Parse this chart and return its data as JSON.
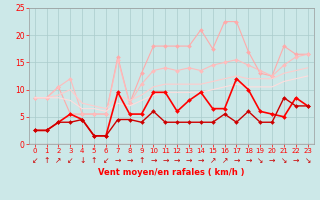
{
  "x": [
    0,
    1,
    2,
    3,
    4,
    5,
    6,
    7,
    8,
    9,
    10,
    11,
    12,
    13,
    14,
    15,
    16,
    17,
    18,
    19,
    20,
    21,
    22,
    23
  ],
  "series": [
    {
      "name": "rafales_high",
      "color": "#ffaaaa",
      "linewidth": 0.8,
      "markersize": 2.0,
      "marker": "D",
      "values": [
        8.5,
        8.5,
        10.5,
        5.5,
        5.5,
        5.5,
        5.5,
        16.0,
        7.5,
        13.0,
        18.0,
        18.0,
        18.0,
        18.0,
        21.0,
        17.5,
        22.5,
        22.5,
        17.0,
        13.0,
        12.5,
        18.0,
        16.5,
        16.5
      ]
    },
    {
      "name": "rafales_mid",
      "color": "#ffbbbb",
      "linewidth": 0.8,
      "markersize": 2.0,
      "marker": "D",
      "values": [
        8.5,
        8.5,
        10.5,
        12.0,
        5.5,
        5.5,
        5.5,
        15.5,
        7.5,
        11.0,
        13.5,
        14.0,
        13.5,
        14.0,
        13.5,
        14.5,
        15.0,
        15.5,
        14.5,
        13.5,
        12.5,
        14.5,
        16.0,
        16.5
      ]
    },
    {
      "name": "moy_upper",
      "color": "#ffcccc",
      "linewidth": 0.8,
      "markersize": 0,
      "marker": "None",
      "values": [
        8.5,
        8.5,
        9.0,
        10.0,
        7.5,
        7.0,
        6.5,
        9.0,
        8.0,
        9.0,
        10.5,
        11.0,
        11.0,
        11.0,
        11.0,
        11.5,
        12.0,
        12.5,
        12.0,
        12.0,
        12.0,
        13.0,
        13.5,
        14.0
      ]
    },
    {
      "name": "moy_lower",
      "color": "#ffdddd",
      "linewidth": 0.8,
      "markersize": 0,
      "marker": "None",
      "values": [
        8.5,
        8.5,
        8.5,
        8.0,
        6.5,
        6.5,
        6.0,
        7.5,
        7.0,
        8.0,
        9.0,
        9.5,
        9.5,
        9.5,
        9.5,
        10.0,
        10.5,
        11.0,
        10.5,
        10.5,
        10.5,
        11.5,
        12.0,
        12.5
      ]
    },
    {
      "name": "vent_moyen",
      "color": "#ff0000",
      "linewidth": 1.2,
      "markersize": 2.0,
      "marker": "D",
      "values": [
        2.5,
        2.5,
        4.0,
        5.5,
        4.5,
        1.5,
        1.5,
        9.5,
        5.5,
        5.5,
        9.5,
        9.5,
        6.0,
        8.0,
        9.5,
        6.5,
        6.5,
        12.0,
        10.0,
        6.0,
        5.5,
        5.0,
        8.5,
        7.0
      ]
    },
    {
      "name": "vent_min",
      "color": "#cc0000",
      "linewidth": 1.0,
      "markersize": 2.0,
      "marker": "D",
      "values": [
        2.5,
        2.5,
        4.0,
        4.0,
        4.5,
        1.5,
        1.5,
        4.5,
        4.5,
        4.0,
        6.0,
        4.0,
        4.0,
        4.0,
        4.0,
        4.0,
        5.5,
        4.0,
        6.0,
        4.0,
        4.0,
        8.5,
        7.0,
        7.0
      ]
    }
  ],
  "arrows": [
    "↙",
    "↑",
    "↗",
    "↙",
    "↓",
    "↑",
    "↙",
    "→",
    "→",
    "↑",
    "→",
    "→",
    "→",
    "→",
    "→",
    "↗",
    "↗",
    "→",
    "→",
    "↘",
    "→",
    "↘",
    "→",
    "↘"
  ],
  "xlabel": "Vent moyen/en rafales ( km/h )",
  "ylim": [
    0,
    25
  ],
  "xlim": [
    -0.5,
    23.5
  ],
  "yticks": [
    0,
    5,
    10,
    15,
    20,
    25
  ],
  "xticks": [
    0,
    1,
    2,
    3,
    4,
    5,
    6,
    7,
    8,
    9,
    10,
    11,
    12,
    13,
    14,
    15,
    16,
    17,
    18,
    19,
    20,
    21,
    22,
    23
  ],
  "bg_color": "#cce8e8",
  "grid_color": "#aacccc",
  "tick_color": "#ff0000",
  "label_color": "#ff0000",
  "arrow_color": "#cc0000",
  "figwidth": 3.2,
  "figheight": 2.0,
  "dpi": 100
}
